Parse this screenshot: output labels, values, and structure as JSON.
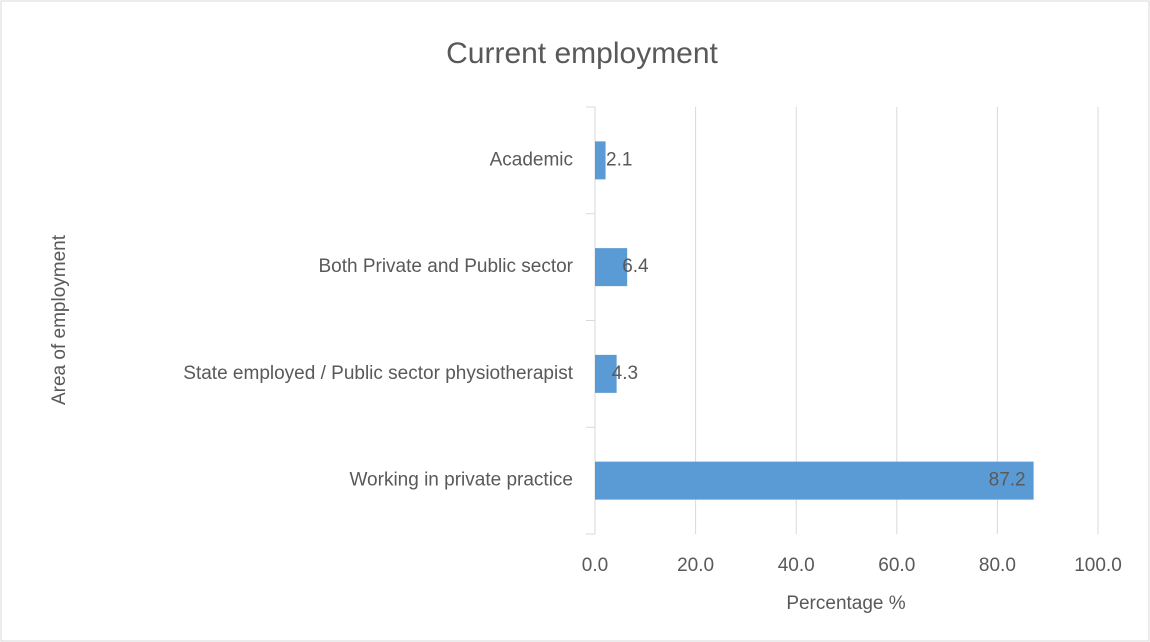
{
  "chart_data": {
    "type": "bar",
    "orientation": "horizontal",
    "title": "Current employment",
    "categories": [
      "Academic",
      "Both Private and Public sector",
      "State employed / Public sector physiotherapist",
      "Working in private practice"
    ],
    "values": [
      2.1,
      6.4,
      4.3,
      87.2
    ],
    "color": "#5b9bd5",
    "xlim": [
      0,
      100
    ],
    "xticks": [
      {
        "value": 0,
        "label": "0.0"
      },
      {
        "value": 20,
        "label": "20.0"
      },
      {
        "value": 40,
        "label": "40.0"
      },
      {
        "value": 60,
        "label": "60.0"
      },
      {
        "value": 80,
        "label": "80.0"
      },
      {
        "value": 100,
        "label": "100.0"
      }
    ],
    "xlabel": "Percentage %",
    "ylabel": "Area of employment",
    "grid": true
  }
}
